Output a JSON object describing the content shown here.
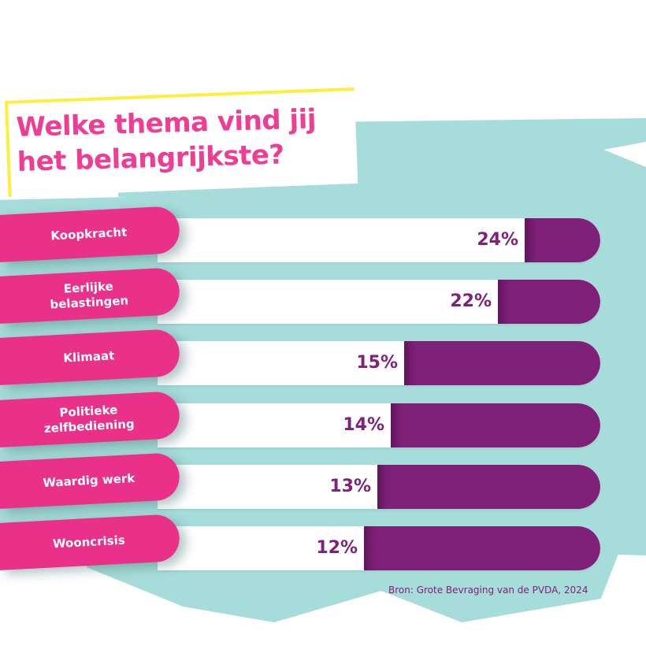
{
  "title": {
    "line1": "Welke thema vind jij",
    "line2": "het belangrijkste?"
  },
  "colors": {
    "label_pill": "#e9318a",
    "bar_fill": "#7f2178",
    "bar_track": "#ffffff",
    "background_brush": "#a6dcd9",
    "title_text": "#ee3e93",
    "title_highlight": "#ffef3a"
  },
  "rows": [
    {
      "label": "Koopkracht",
      "value": 24,
      "value_label": "24%"
    },
    {
      "label": "Eerlijke\nbelastingen",
      "value": 22,
      "value_label": "22%"
    },
    {
      "label": "Klimaat",
      "value": 15,
      "value_label": "15%"
    },
    {
      "label": "Politieke\nzelfbediening",
      "value": 14,
      "value_label": "14%"
    },
    {
      "label": "Waardig werk",
      "value": 13,
      "value_label": "13%"
    },
    {
      "label": "Wooncrisis",
      "value": 12,
      "value_label": "12%"
    }
  ],
  "source": "Bron: Grote Bevraging van de PVDA, 2024",
  "chart_data": {
    "type": "bar",
    "orientation": "horizontal",
    "title": "Welke thema vind jij het belangrijkste?",
    "categories": [
      "Koopkracht",
      "Eerlijke belastingen",
      "Klimaat",
      "Politieke zelfbediening",
      "Waardig werk",
      "Wooncrisis"
    ],
    "values": [
      24,
      22,
      15,
      14,
      13,
      12
    ],
    "unit": "%",
    "xlabel": "",
    "ylabel": "",
    "grid": false,
    "legend": null,
    "annotations": [
      "Bron: Grote Bevraging van de PVDA, 2024"
    ]
  }
}
